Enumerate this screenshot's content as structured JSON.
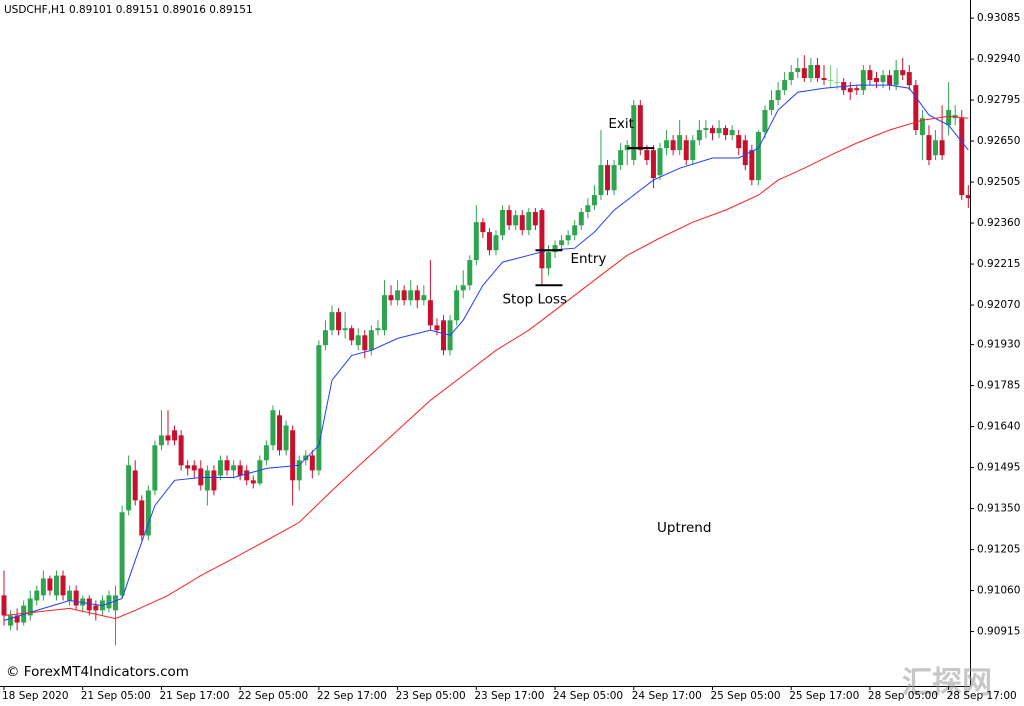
{
  "chart_data": {
    "type": "candlestick",
    "title": "USDCHF,H1  0.89101 0.89151 0.89016 0.89151",
    "credit": "© ForexMT4Indicators.com",
    "trend_label": "Uptrend",
    "watermark": "汇探网",
    "up_color": "#2ea44f",
    "down_color": "#c8102e",
    "flat_color": "#7fd67f",
    "ylim": [
      0.90726,
      0.93149
    ],
    "yticks": [
      0.93085,
      {
        "value": 0.9294,
        "label": "0.92940"
      },
      0.92795,
      {
        "value": 0.9265,
        "label": "0.92650"
      },
      0.92505,
      {
        "value": 0.9236,
        "label": "0.92360"
      },
      0.92215,
      {
        "value": 0.9207,
        "label": "0.92070"
      },
      {
        "value": 0.9193,
        "label": "0.91930"
      },
      0.91785,
      {
        "value": 0.9164,
        "label": "0.91640"
      },
      0.91495,
      {
        "value": 0.9135,
        "label": "0.91350"
      },
      0.91205,
      {
        "value": 0.9106,
        "label": "0.91060"
      },
      0.90915
    ],
    "xticks": [
      {
        "value": 0,
        "label": "18 Sep 2020"
      },
      {
        "value": 12,
        "label": "21 Sep 05:00"
      },
      {
        "value": 24,
        "label": "21 Sep 17:00"
      },
      {
        "value": 36,
        "label": "22 Sep 05:00"
      },
      {
        "value": 48,
        "label": "22 Sep 17:00"
      },
      {
        "value": 60,
        "label": "23 Sep 05:00"
      },
      {
        "value": 72,
        "label": "23 Sep 17:00"
      },
      {
        "value": 84,
        "label": "24 Sep 05:00"
      },
      {
        "value": 96,
        "label": "24 Sep 17:00"
      },
      {
        "value": 108,
        "label": "25 Sep 05:00"
      },
      {
        "value": 120,
        "label": "25 Sep 17:00"
      },
      {
        "value": 132,
        "label": "28 Sep 05:00"
      },
      {
        "value": 144,
        "label": "28 Sep 17:00"
      }
    ],
    "open": [
      0.91043,
      0.90936,
      0.90972,
      0.90947,
      0.90972,
      0.91025,
      0.91043,
      0.91103,
      0.91043,
      0.91113,
      0.91025,
      0.9106,
      0.91007,
      0.91032,
      0.91007,
      0.9099,
      0.90997,
      0.9099,
      0.91043,
      0.91344,
      0.91485,
      0.91379,
      0.91255,
      0.91414,
      0.91574,
      0.91609,
      0.91627,
      0.91609,
      0.91503,
      0.91503,
      0.91492,
      0.91414,
      0.91485,
      0.91467,
      0.91521,
      0.91485,
      0.91503,
      0.91485,
      0.9145,
      0.91439,
      0.91521,
      0.91574,
      0.9168,
      0.91556,
      0.91627,
      0.9145,
      0.91521,
      0.91538,
      0.91485,
      0.91928,
      0.91981,
      0.92045,
      0.91981,
      0.91988,
      0.91928,
      0.91963,
      0.9191,
      0.91981,
      0.91981,
      0.92105,
      0.92087,
      0.92122,
      0.92087,
      0.92122,
      0.92087,
      0.92087,
      0.91998,
      0.92016,
      0.9191,
      0.92016,
      0.92122,
      0.9214,
      0.92229,
      0.92363,
      0.92328,
      0.92264,
      0.92317,
      0.92406,
      0.92352,
      0.92388,
      0.92335,
      0.92399,
      0.92406,
      0.922,
      0.92257,
      0.92282,
      0.92299,
      0.92317,
      0.92352,
      0.92399,
      0.92423,
      0.92459,
      0.92565,
      0.92476,
      0.92565,
      0.92618,
      0.92583,
      0.92777,
      0.92618,
      0.92618,
      0.92529,
      0.92625,
      0.92653,
      0.92618,
      0.92653,
      0.92583,
      0.92653,
      0.92689,
      0.92696,
      0.92678,
      0.92696,
      0.92671,
      0.92671,
      0.92653,
      0.92618,
      0.92512,
      0.92682,
      0.9276,
      0.92795,
      0.9283,
      0.92866,
      0.92894,
      0.92908,
      0.92873,
      0.92919,
      0.92873,
      0.92866,
      0.92859,
      0.92859,
      0.92837,
      0.92837,
      0.9283,
      0.92901,
      0.92873,
      0.92859,
      0.92883,
      0.92848,
      0.92901,
      0.92894,
      0.92848,
      0.92671,
      0.92671,
      0.926,
      0.92653,
      0.92706,
      0.92731,
      0.92731,
      0.92459
    ],
    "high": [
      0.91131,
      0.9099,
      0.90997,
      0.91025,
      0.9106,
      0.91078,
      0.91131,
      0.91113,
      0.91131,
      0.91131,
      0.91078,
      0.91078,
      0.91043,
      0.91043,
      0.91025,
      0.91043,
      0.9106,
      0.91078,
      0.91361,
      0.91538,
      0.91521,
      0.91397,
      0.91432,
      0.91591,
      0.91698,
      0.91698,
      0.91644,
      0.91627,
      0.91521,
      0.91521,
      0.91521,
      0.91503,
      0.91503,
      0.91538,
      0.91538,
      0.91521,
      0.91521,
      0.91503,
      0.91467,
      0.91538,
      0.91591,
      0.91715,
      0.91698,
      0.91662,
      0.91644,
      0.91538,
      0.91556,
      0.91556,
      0.91945,
      0.92016,
      0.92069,
      0.92059,
      0.92045,
      0.91998,
      0.91988,
      0.91981,
      0.91998,
      0.92016,
      0.92158,
      0.9214,
      0.92158,
      0.9214,
      0.92158,
      0.9214,
      0.9214,
      0.92229,
      0.92023,
      0.92034,
      0.92034,
      0.9214,
      0.92193,
      0.92246,
      0.92423,
      0.92377,
      0.92342,
      0.92335,
      0.92423,
      0.92423,
      0.92406,
      0.92406,
      0.92413,
      0.92413,
      0.92413,
      0.92282,
      0.92299,
      0.92317,
      0.92335,
      0.9237,
      0.92413,
      0.92448,
      0.92494,
      0.92689,
      0.92583,
      0.92583,
      0.92643,
      0.92653,
      0.92795,
      0.92795,
      0.92636,
      0.92636,
      0.92643,
      0.92689,
      0.92671,
      0.92724,
      0.92671,
      0.92671,
      0.92724,
      0.92724,
      0.92706,
      0.92724,
      0.92706,
      0.92706,
      0.92689,
      0.92671,
      0.92636,
      0.92689,
      0.92777,
      0.9283,
      0.92859,
      0.92894,
      0.92919,
      0.92944,
      0.92954,
      0.92944,
      0.92944,
      0.92919,
      0.92919,
      0.92908,
      0.92873,
      0.92859,
      0.92848,
      0.92919,
      0.92919,
      0.92894,
      0.92901,
      0.92901,
      0.92937,
      0.92944,
      0.92919,
      0.92866,
      0.9276,
      0.92706,
      0.92689,
      0.92777,
      0.92859,
      0.92777,
      0.9276,
      0.92494
    ],
    "low": [
      0.90936,
      0.90919,
      0.90919,
      0.90936,
      0.90954,
      0.91007,
      0.91025,
      0.91043,
      0.91025,
      0.91025,
      0.91007,
      0.9099,
      0.90983,
      0.90972,
      0.90954,
      0.90972,
      0.90983,
      0.90866,
      0.91032,
      0.91326,
      0.91361,
      0.91237,
      0.91237,
      0.91397,
      0.91556,
      0.91574,
      0.91574,
      0.91485,
      0.91467,
      0.91457,
      0.91414,
      0.91361,
      0.91397,
      0.9145,
      0.91467,
      0.91457,
      0.9145,
      0.91432,
      0.91421,
      0.91432,
      0.91503,
      0.91556,
      0.91538,
      0.91538,
      0.91361,
      0.91414,
      0.91503,
      0.91457,
      0.91467,
      0.9191,
      0.91963,
      0.91963,
      0.91952,
      0.91928,
      0.9191,
      0.91882,
      0.91892,
      0.91963,
      0.91963,
      0.92069,
      0.92069,
      0.92069,
      0.92069,
      0.92059,
      0.92069,
      0.91981,
      0.91963,
      0.91892,
      0.91892,
      0.91998,
      0.92094,
      0.92122,
      0.92211,
      0.92307,
      0.92246,
      0.92246,
      0.92299,
      0.92335,
      0.92335,
      0.92317,
      0.92317,
      0.92335,
      0.9214,
      0.92175,
      0.92236,
      0.92264,
      0.92282,
      0.92299,
      0.92335,
      0.92377,
      0.92406,
      0.92441,
      0.92459,
      0.92459,
      0.92547,
      0.92565,
      0.92565,
      0.926,
      0.92565,
      0.92483,
      0.92512,
      0.926,
      0.926,
      0.926,
      0.92565,
      0.92565,
      0.92636,
      0.9266,
      0.92653,
      0.9266,
      0.92653,
      0.92653,
      0.926,
      0.92547,
      0.92494,
      0.92494,
      0.9266,
      0.92742,
      0.92777,
      0.92813,
      0.92848,
      0.92873,
      0.92859,
      0.92859,
      0.92859,
      0.92848,
      0.92837,
      0.9283,
      0.92813,
      0.92795,
      0.92813,
      0.92813,
      0.92848,
      0.92837,
      0.92837,
      0.9283,
      0.9283,
      0.92866,
      0.9283,
      0.92671,
      0.92583,
      0.92565,
      0.92583,
      0.92583,
      0.92671,
      0.92706,
      0.92441,
      0.92413
    ],
    "close": [
      0.90972,
      0.90972,
      0.90947,
      0.91007,
      0.91032,
      0.9106,
      0.91103,
      0.9106,
      0.91113,
      0.91043,
      0.9106,
      0.91007,
      0.91032,
      0.9099,
      0.9099,
      0.91025,
      0.91043,
      0.91043,
      0.91337,
      0.91503,
      0.91379,
      0.91255,
      0.91414,
      0.91574,
      0.91609,
      0.91591,
      0.91591,
      0.91503,
      0.91492,
      0.91485,
      0.91432,
      0.91485,
      0.91414,
      0.91521,
      0.91485,
      0.91503,
      0.91467,
      0.9145,
      0.91439,
      0.91521,
      0.91574,
      0.91698,
      0.91556,
      0.91644,
      0.9145,
      0.91521,
      0.91538,
      0.91485,
      0.91928,
      0.91981,
      0.92045,
      0.91981,
      0.91988,
      0.91945,
      0.91963,
      0.9191,
      0.91981,
      0.91988,
      0.92105,
      0.92087,
      0.92122,
      0.92087,
      0.92122,
      0.92087,
      0.92105,
      0.91998,
      0.91981,
      0.9191,
      0.92016,
      0.92122,
      0.9214,
      0.92229,
      0.92363,
      0.92328,
      0.92264,
      0.92317,
      0.92406,
      0.92352,
      0.92388,
      0.92335,
      0.92399,
      0.92352,
      0.922,
      0.92257,
      0.92282,
      0.92299,
      0.92317,
      0.92352,
      0.92399,
      0.92423,
      0.92459,
      0.92565,
      0.92476,
      0.92565,
      0.92618,
      0.92636,
      0.92777,
      0.92618,
      0.92583,
      0.92519,
      0.92625,
      0.92653,
      0.92618,
      0.92671,
      0.92583,
      0.92653,
      0.92689,
      0.92696,
      0.92678,
      0.92696,
      0.92671,
      0.92689,
      0.92625,
      0.92565,
      0.92512,
      0.92682,
      0.9276,
      0.92795,
      0.9283,
      0.92866,
      0.92894,
      0.92908,
      0.92873,
      0.92919,
      0.92873,
      0.92866,
      0.92866,
      0.92859,
      0.9283,
      0.92823,
      0.9283,
      0.92901,
      0.92866,
      0.92859,
      0.92883,
      0.92848,
      0.92901,
      0.92883,
      0.92848,
      0.92689,
      0.92731,
      0.92583,
      0.92653,
      0.926,
      0.9276,
      0.92742,
      0.92459,
      0.92448
    ],
    "lines": [
      {
        "color": "#1f3fff",
        "x": [
          0,
          5,
          10,
          15,
          18,
          20,
          23,
          26,
          30,
          35,
          40,
          45,
          48,
          50,
          53,
          56,
          60,
          65,
          68,
          70,
          73,
          76,
          80,
          83,
          87,
          90,
          93,
          96,
          99,
          103,
          108,
          112,
          115,
          118,
          121,
          125,
          130,
          135,
          138,
          141,
          144,
          147
        ],
        "values": [
          0.90954,
          0.9099,
          0.91025,
          0.91007,
          0.91032,
          0.91167,
          0.91361,
          0.9145,
          0.9146,
          0.9146,
          0.91492,
          0.91503,
          0.91574,
          0.91804,
          0.91892,
          0.9191,
          0.91952,
          0.91981,
          0.91963,
          0.92016,
          0.9214,
          0.92222,
          0.92246,
          0.92264,
          0.92271,
          0.92328,
          0.92406,
          0.92459,
          0.92512,
          0.92554,
          0.9259,
          0.9259,
          0.92625,
          0.9276,
          0.92823,
          0.92837,
          0.92848,
          0.92848,
          0.92837,
          0.92742,
          0.92706,
          0.92618
        ]
      },
      {
        "color": "#ff2020",
        "x": [
          0,
          10,
          17,
          20,
          25,
          30,
          35,
          40,
          45,
          50,
          55,
          60,
          65,
          70,
          75,
          80,
          85,
          90,
          95,
          100,
          105,
          110,
          115,
          118,
          122,
          126,
          130,
          135,
          140,
          144,
          147
        ],
        "values": [
          0.90972,
          0.90997,
          0.90961,
          0.9099,
          0.91043,
          0.91113,
          0.91174,
          0.91237,
          0.91301,
          0.91414,
          0.91521,
          0.91627,
          0.91733,
          0.91821,
          0.9191,
          0.91981,
          0.92069,
          0.92158,
          0.92246,
          0.92307,
          0.92363,
          0.92406,
          0.92459,
          0.92512,
          0.92554,
          0.926,
          0.92643,
          0.92689,
          0.92724,
          0.92738,
          0.92731
        ]
      }
    ],
    "annotations": [
      {
        "text": "Exit",
        "value": 0.92625,
        "x": 97
      },
      {
        "text": "Entry",
        "value": 0.92264,
        "x": 83
      },
      {
        "text": "Stop Loss",
        "value": 0.9214,
        "x": 83
      }
    ]
  }
}
